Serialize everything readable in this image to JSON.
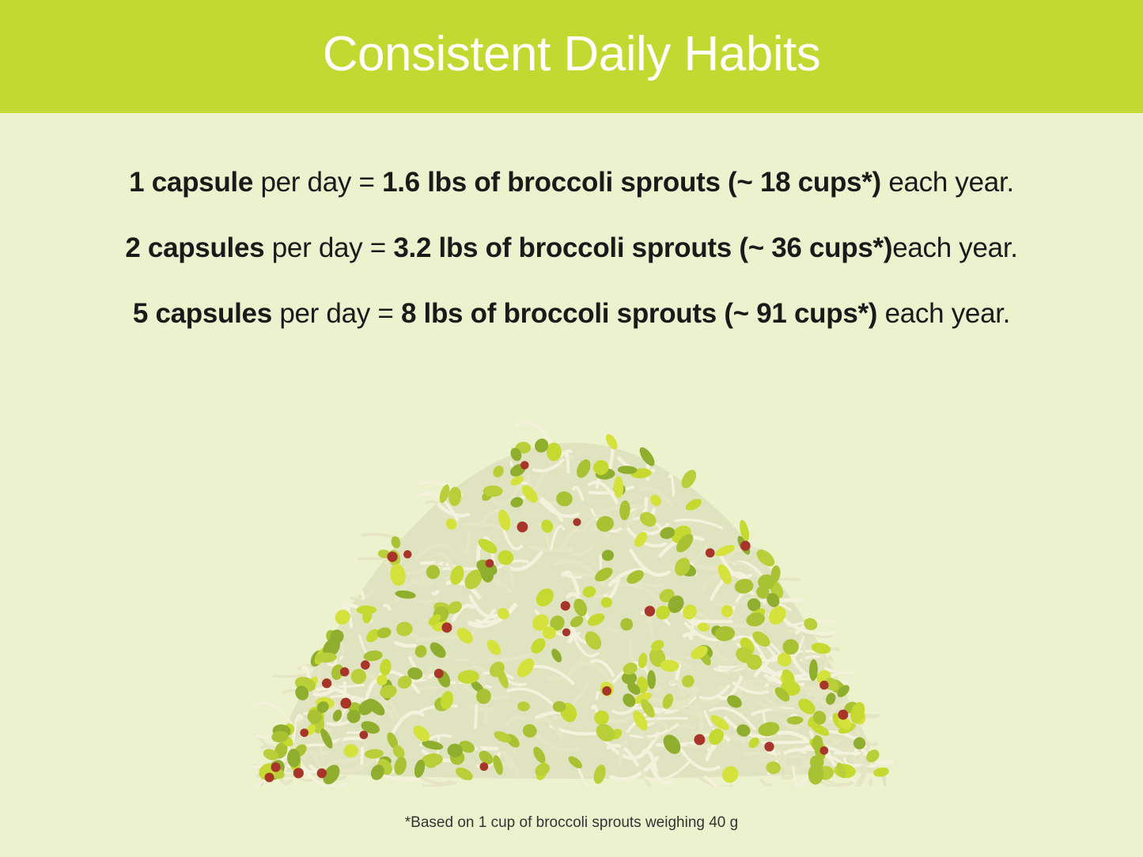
{
  "header": {
    "title": "Consistent Daily Habits",
    "background_color": "#c2d932"
  },
  "background_color": "#ecf2cd",
  "lines": [
    {
      "segments": [
        {
          "text": "1 capsule",
          "bold": true
        },
        {
          "text": " per day = ",
          "bold": false
        },
        {
          "text": "1.6 lbs of broccoli sprouts (~ 18 cups*)",
          "bold": true
        },
        {
          "text": " each year.",
          "bold": false
        }
      ]
    },
    {
      "segments": [
        {
          "text": "2 capsules",
          "bold": true
        },
        {
          "text": " per day = ",
          "bold": false
        },
        {
          "text": "3.2 lbs of broccoli sprouts (~ 36 cups*)",
          "bold": true
        },
        {
          "text": "each year.",
          "bold": false
        }
      ]
    },
    {
      "segments": [
        {
          "text": "5 capsules",
          "bold": true
        },
        {
          "text": " per day = ",
          "bold": false
        },
        {
          "text": "8 lbs of broccoli sprouts (~ 91 cups*)",
          "bold": true
        },
        {
          "text": " each year.",
          "bold": false
        }
      ]
    }
  ],
  "image": {
    "subject": "pile of broccoli sprouts"
  },
  "footnote": "*Based on 1 cup of broccoli sprouts weighing 40 g"
}
